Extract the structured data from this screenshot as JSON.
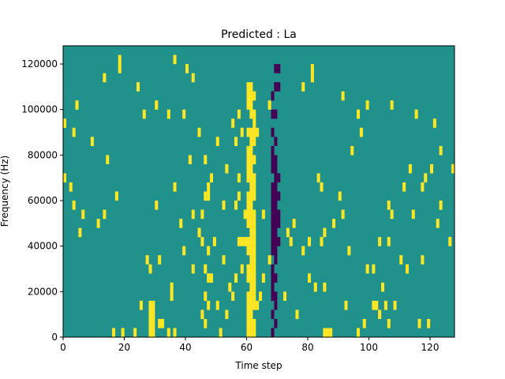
{
  "chart_data": {
    "type": "heatmap",
    "title": "Predicted : La",
    "xlabel": "Time step",
    "ylabel": "Frequency (Hz)",
    "xlim": [
      0,
      128
    ],
    "ylim": [
      0,
      128000
    ],
    "xticks": [
      0,
      20,
      40,
      60,
      80,
      100,
      120
    ],
    "xtick_labels": [
      "0",
      "20",
      "40",
      "60",
      "80",
      "100",
      "120"
    ],
    "yticks": [
      0,
      20000,
      40000,
      60000,
      80000,
      100000,
      120000
    ],
    "ytick_labels": [
      "0",
      "20000",
      "40000",
      "60000",
      "80000",
      "100000",
      "120000"
    ],
    "grid": false,
    "legend": "none",
    "colormap": "viridis",
    "value_levels": [
      -1,
      0,
      1
    ],
    "level_colors": {
      "low": "#440154",
      "mid": "#21918c",
      "high": "#fde725"
    },
    "background_level": 0,
    "n_time_steps": 128,
    "n_frequency_bins": 32,
    "frequency_bin_hz": 4000,
    "cells_note": "non-background cells as [time_step, frequency_bin_index, value]",
    "cells": [
      [
        60,
        0,
        1
      ],
      [
        61,
        0,
        1
      ],
      [
        62,
        0,
        1
      ],
      [
        60,
        1,
        1
      ],
      [
        61,
        1,
        1
      ],
      [
        62,
        1,
        1
      ],
      [
        60,
        2,
        1
      ],
      [
        61,
        2,
        1
      ],
      [
        60,
        3,
        1
      ],
      [
        61,
        3,
        1
      ],
      [
        62,
        3,
        1
      ],
      [
        60,
        4,
        1
      ],
      [
        61,
        4,
        1
      ],
      [
        62,
        4,
        1
      ],
      [
        61,
        5,
        1
      ],
      [
        62,
        5,
        1
      ],
      [
        60,
        6,
        1
      ],
      [
        61,
        6,
        1
      ],
      [
        62,
        6,
        1
      ],
      [
        60,
        7,
        1
      ],
      [
        61,
        7,
        1
      ],
      [
        62,
        7,
        1
      ],
      [
        61,
        8,
        1
      ],
      [
        62,
        8,
        1
      ],
      [
        60,
        9,
        1
      ],
      [
        61,
        9,
        1
      ],
      [
        62,
        9,
        1
      ],
      [
        59,
        10,
        1
      ],
      [
        60,
        10,
        1
      ],
      [
        61,
        10,
        1
      ],
      [
        62,
        10,
        1
      ],
      [
        57,
        10,
        1
      ],
      [
        58,
        10,
        1
      ],
      [
        61,
        11,
        1
      ],
      [
        62,
        11,
        1
      ],
      [
        60,
        12,
        1
      ],
      [
        61,
        12,
        1
      ],
      [
        62,
        12,
        1
      ],
      [
        59,
        13,
        1
      ],
      [
        60,
        13,
        1
      ],
      [
        61,
        13,
        1
      ],
      [
        62,
        13,
        1
      ],
      [
        60,
        14,
        1
      ],
      [
        61,
        14,
        1
      ],
      [
        60,
        15,
        1
      ],
      [
        61,
        15,
        1
      ],
      [
        62,
        15,
        1
      ],
      [
        61,
        16,
        1
      ],
      [
        62,
        16,
        1
      ],
      [
        60,
        17,
        1
      ],
      [
        61,
        17,
        1
      ],
      [
        62,
        17,
        1
      ],
      [
        60,
        18,
        1
      ],
      [
        61,
        18,
        1
      ],
      [
        60,
        19,
        1
      ],
      [
        61,
        19,
        1
      ],
      [
        62,
        19,
        1
      ],
      [
        60,
        20,
        1
      ],
      [
        61,
        20,
        1
      ],
      [
        61,
        21,
        1
      ],
      [
        62,
        21,
        1
      ],
      [
        60,
        22,
        1
      ],
      [
        61,
        22,
        1
      ],
      [
        62,
        22,
        1
      ],
      [
        62,
        23,
        1
      ],
      [
        61,
        24,
        1
      ],
      [
        62,
        24,
        1
      ],
      [
        60,
        25,
        1
      ],
      [
        61,
        25,
        1
      ],
      [
        60,
        26,
        1
      ],
      [
        61,
        26,
        1
      ],
      [
        62,
        26,
        1
      ],
      [
        60,
        27,
        1
      ],
      [
        61,
        27,
        1
      ],
      [
        68,
        0,
        -1
      ],
      [
        69,
        1,
        -1
      ],
      [
        68,
        2,
        -1
      ],
      [
        69,
        3,
        -1
      ],
      [
        68,
        4,
        -1
      ],
      [
        69,
        4,
        -1
      ],
      [
        68,
        5,
        -1
      ],
      [
        68,
        6,
        -1
      ],
      [
        69,
        6,
        -1
      ],
      [
        68,
        7,
        -1
      ],
      [
        69,
        8,
        -1
      ],
      [
        68,
        9,
        -1
      ],
      [
        69,
        9,
        -1
      ],
      [
        68,
        10,
        -1
      ],
      [
        69,
        10,
        -1
      ],
      [
        70,
        10,
        -1
      ],
      [
        68,
        11,
        -1
      ],
      [
        69,
        11,
        -1
      ],
      [
        68,
        12,
        -1
      ],
      [
        69,
        12,
        -1
      ],
      [
        70,
        12,
        -1
      ],
      [
        68,
        13,
        -1
      ],
      [
        69,
        13,
        -1
      ],
      [
        70,
        13,
        -1
      ],
      [
        68,
        14,
        -1
      ],
      [
        69,
        14,
        -1
      ],
      [
        68,
        15,
        -1
      ],
      [
        69,
        15,
        -1
      ],
      [
        70,
        15,
        -1
      ],
      [
        68,
        16,
        -1
      ],
      [
        69,
        16,
        -1
      ],
      [
        69,
        17,
        -1
      ],
      [
        70,
        17,
        -1
      ],
      [
        68,
        18,
        -1
      ],
      [
        69,
        18,
        -1
      ],
      [
        68,
        19,
        -1
      ],
      [
        69,
        19,
        -1
      ],
      [
        68,
        20,
        -1
      ],
      [
        69,
        21,
        -1
      ],
      [
        68,
        22,
        -1
      ],
      [
        68,
        24,
        -1
      ],
      [
        69,
        24,
        -1
      ],
      [
        68,
        26,
        -1
      ],
      [
        69,
        27,
        -1
      ],
      [
        70,
        27,
        -1
      ],
      [
        69,
        29,
        -1
      ],
      [
        70,
        29,
        -1
      ],
      [
        28,
        0,
        1
      ],
      [
        29,
        0,
        1
      ],
      [
        28,
        1,
        1
      ],
      [
        29,
        1,
        1
      ],
      [
        28,
        2,
        1
      ],
      [
        29,
        2,
        1
      ],
      [
        28,
        3,
        1
      ],
      [
        29,
        3,
        1
      ],
      [
        31,
        1,
        1
      ],
      [
        32,
        1,
        1
      ],
      [
        34,
        0,
        1
      ],
      [
        36,
        0,
        1
      ],
      [
        23,
        0,
        1
      ],
      [
        16,
        0,
        1
      ],
      [
        19,
        0,
        1
      ],
      [
        46,
        4,
        1
      ],
      [
        47,
        6,
        1
      ],
      [
        46,
        7,
        1
      ],
      [
        35,
        4,
        1
      ],
      [
        35,
        5,
        1
      ],
      [
        46,
        15,
        1
      ],
      [
        47,
        15,
        1
      ],
      [
        44,
        11,
        1
      ],
      [
        49,
        10,
        1
      ],
      [
        45,
        13,
        1
      ],
      [
        48,
        17,
        1
      ],
      [
        46,
        19,
        1
      ],
      [
        47,
        16,
        1
      ],
      [
        52,
        14,
        1
      ],
      [
        56,
        14,
        1
      ],
      [
        53,
        18,
        1
      ],
      [
        57,
        17,
        1
      ],
      [
        2,
        16,
        1
      ],
      [
        0,
        17,
        1
      ],
      [
        5,
        11,
        1
      ],
      [
        6,
        13,
        1
      ],
      [
        3,
        14,
        1
      ],
      [
        11,
        12,
        1
      ],
      [
        13,
        13,
        1
      ],
      [
        17,
        15,
        1
      ],
      [
        25,
        3,
        1
      ],
      [
        30,
        14,
        1
      ],
      [
        27,
        8,
        1
      ],
      [
        28,
        7,
        1
      ],
      [
        31,
        8,
        1
      ],
      [
        4,
        25,
        1
      ],
      [
        13,
        28,
        1
      ],
      [
        18,
        30,
        1
      ],
      [
        18,
        29,
        1
      ],
      [
        0,
        23,
        1
      ],
      [
        3,
        22,
        1
      ],
      [
        9,
        21,
        1
      ],
      [
        14,
        19,
        1
      ],
      [
        24,
        27,
        1
      ],
      [
        26,
        24,
        1
      ],
      [
        30,
        25,
        1
      ],
      [
        34,
        24,
        1
      ],
      [
        44,
        22,
        1
      ],
      [
        50,
        21,
        1
      ],
      [
        55,
        23,
        1
      ],
      [
        56,
        21,
        1
      ],
      [
        63,
        22,
        1
      ],
      [
        73,
        11,
        1
      ],
      [
        74,
        10,
        1
      ],
      [
        78,
        9,
        1
      ],
      [
        80,
        10,
        1
      ],
      [
        84,
        10,
        1
      ],
      [
        85,
        11,
        1
      ],
      [
        91,
        13,
        1
      ],
      [
        94,
        20,
        1
      ],
      [
        96,
        24,
        1
      ],
      [
        99,
        25,
        1
      ],
      [
        103,
        10,
        1
      ],
      [
        106,
        10,
        1
      ],
      [
        110,
        8,
        1
      ],
      [
        114,
        13,
        1
      ],
      [
        113,
        18,
        1
      ],
      [
        117,
        8,
        1
      ],
      [
        120,
        18,
        1
      ],
      [
        121,
        23,
        1
      ],
      [
        123,
        14,
        1
      ],
      [
        126,
        10,
        1
      ],
      [
        122,
        12,
        1
      ],
      [
        123,
        20,
        1
      ],
      [
        127,
        18,
        1
      ],
      [
        118,
        17,
        1
      ],
      [
        119,
        1,
        1
      ],
      [
        116,
        1,
        1
      ],
      [
        106,
        1,
        1
      ],
      [
        105,
        3,
        1
      ],
      [
        85,
        0,
        1
      ],
      [
        86,
        0,
        1
      ],
      [
        87,
        0,
        1
      ],
      [
        101,
        3,
        1
      ],
      [
        102,
        3,
        1
      ],
      [
        112,
        7,
        1
      ],
      [
        107,
        13,
        1
      ],
      [
        106,
        14,
        1
      ],
      [
        88,
        12,
        1
      ],
      [
        90,
        15,
        1
      ],
      [
        93,
        9,
        1
      ],
      [
        92,
        3,
        1
      ],
      [
        85,
        5,
        1
      ],
      [
        99,
        7,
        1
      ],
      [
        107,
        25,
        1
      ],
      [
        111,
        16,
        1
      ],
      [
        115,
        24,
        1
      ],
      [
        117,
        16,
        1
      ],
      [
        81,
        28,
        1
      ],
      [
        78,
        27,
        1
      ],
      [
        81,
        29,
        1
      ],
      [
        91,
        26,
        1
      ],
      [
        97,
        22,
        1
      ],
      [
        83,
        17,
        1
      ],
      [
        84,
        16,
        1
      ],
      [
        82,
        5,
        1
      ],
      [
        80,
        6,
        1
      ],
      [
        76,
        2,
        1
      ],
      [
        72,
        4,
        1
      ],
      [
        75,
        12,
        1
      ],
      [
        65,
        6,
        1
      ],
      [
        64,
        4,
        1
      ],
      [
        65,
        13,
        1
      ],
      [
        63,
        3,
        1
      ],
      [
        67,
        8,
        1
      ],
      [
        67,
        25,
        1
      ],
      [
        58,
        22,
        1
      ],
      [
        57,
        24,
        1
      ],
      [
        58,
        7,
        1
      ],
      [
        57,
        15,
        1
      ],
      [
        55,
        4,
        1
      ],
      [
        56,
        6,
        1
      ],
      [
        45,
        2,
        1
      ],
      [
        46,
        1,
        1
      ],
      [
        47,
        3,
        1
      ],
      [
        42,
        7,
        1
      ],
      [
        39,
        9,
        1
      ],
      [
        38,
        12,
        1
      ],
      [
        36,
        16,
        1
      ],
      [
        41,
        19,
        1
      ],
      [
        39,
        24,
        1
      ],
      [
        42,
        28,
        1
      ],
      [
        40,
        29,
        1
      ],
      [
        36,
        30,
        1
      ],
      [
        42,
        13,
        1
      ],
      [
        44,
        11,
        1
      ],
      [
        47,
        9,
        1
      ],
      [
        45,
        10,
        1
      ],
      [
        48,
        6,
        1
      ],
      [
        51,
        0,
        1
      ],
      [
        50,
        3,
        1
      ],
      [
        53,
        2,
        1
      ],
      [
        54,
        5,
        1
      ],
      [
        52,
        8,
        1
      ],
      [
        96,
        0,
        1
      ],
      [
        98,
        1,
        1
      ],
      [
        101,
        7,
        1
      ],
      [
        103,
        2,
        1
      ],
      [
        104,
        5,
        1
      ],
      [
        108,
        3,
        1
      ]
    ]
  }
}
